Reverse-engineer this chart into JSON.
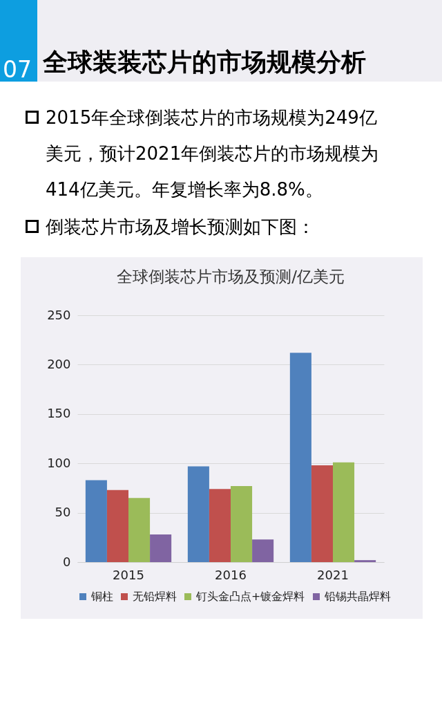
{
  "chart_data": {
    "type": "bar",
    "title": "全球倒装芯片市场及预测/亿美元",
    "categories": [
      "2015",
      "2016",
      "2021"
    ],
    "series": [
      {
        "name": "铜柱",
        "color": "#4f81bd",
        "values": [
          83,
          97,
          212
        ]
      },
      {
        "name": "无铅焊料",
        "color": "#c0504d",
        "values": [
          73,
          74,
          98
        ]
      },
      {
        "name": "钉头金凸点+镀金焊料",
        "color": "#9bbb59",
        "values": [
          65,
          77,
          101
        ]
      },
      {
        "name": "铅锡共晶焊料",
        "color": "#8064a2",
        "values": [
          28,
          23,
          2
        ]
      }
    ],
    "ylim": [
      0,
      250
    ],
    "yticks": [
      0,
      50,
      100,
      150,
      200,
      250
    ],
    "grid": "y",
    "legend": "bottom",
    "annotations": [
      "07",
      "全球装装芯片的市场规模分析",
      "2015年全球倒装芯片的市场规模为249亿美元，预计2021年倒装芯片的市场规模为414亿美元。年复增长率为8.8%。",
      "倒装芯片市场及增长预测如下图："
    ]
  }
}
